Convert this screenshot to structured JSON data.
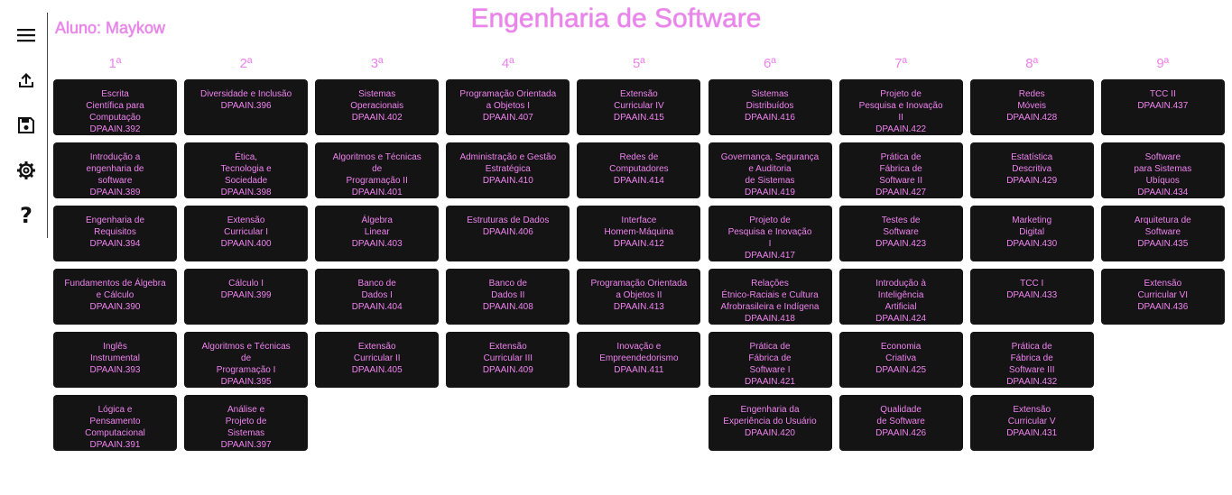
{
  "header": {
    "title": "Engenharia de Software",
    "student": "Aluno: Maykow"
  },
  "sidebar": {
    "items": [
      {
        "name": "menu-icon"
      },
      {
        "name": "upload-icon"
      },
      {
        "name": "save-icon"
      },
      {
        "name": "settings-icon"
      },
      {
        "name": "help-icon"
      }
    ]
  },
  "semesters": [
    "1ª",
    "2ª",
    "3ª",
    "4ª",
    "5ª",
    "6ª",
    "7ª",
    "8ª",
    "9ª"
  ],
  "columns": [
    [
      {
        "lines": [
          "Escrita",
          "Científica para",
          "Computação",
          "DPAAIN.392"
        ]
      },
      {
        "lines": [
          "Introdução a",
          "engenharia de",
          "software",
          "DPAAIN.389"
        ]
      },
      {
        "lines": [
          "Engenharia de",
          "Requisitos",
          "DPAAIN.394"
        ]
      },
      {
        "lines": [
          "Fundamentos de Álgebra",
          "e Cálculo",
          "DPAAIN.390"
        ]
      },
      {
        "lines": [
          "Inglês",
          "Instrumental",
          "DPAAIN.393"
        ]
      },
      {
        "lines": [
          "Lógica e",
          "Pensamento",
          "Computacional",
          "DPAAIN.391"
        ]
      }
    ],
    [
      {
        "lines": [
          "Diversidade e Inclusão",
          "DPAAIN.396"
        ]
      },
      {
        "lines": [
          "Ética,",
          "Tecnologia e",
          "Sociedade",
          "DPAAIN.398"
        ]
      },
      {
        "lines": [
          "Extensão",
          "Curricular I",
          "DPAAIN.400"
        ]
      },
      {
        "lines": [
          "Cálculo I",
          "DPAAIN.399"
        ]
      },
      {
        "lines": [
          "Algoritmos e Técnicas",
          "de",
          "Programação I",
          "DPAAIN.395"
        ]
      },
      {
        "lines": [
          "Análise e",
          "Projeto de",
          "Sistemas",
          "DPAAIN.397"
        ]
      }
    ],
    [
      {
        "lines": [
          "Sistemas",
          "Operacionais",
          "DPAAIN.402"
        ]
      },
      {
        "lines": [
          "Algoritmos e Técnicas",
          "de",
          "Programação II",
          "DPAAIN.401"
        ]
      },
      {
        "lines": [
          "Álgebra",
          "Linear",
          "DPAAIN.403"
        ]
      },
      {
        "lines": [
          "Banco de",
          "Dados I",
          "DPAAIN.404"
        ]
      },
      {
        "lines": [
          "Extensão",
          "Curricular II",
          "DPAAIN.405"
        ]
      }
    ],
    [
      {
        "lines": [
          "Programação Orientada",
          "a Objetos I",
          "DPAAIN.407"
        ]
      },
      {
        "lines": [
          "Administração e Gestão",
          "Estratégica",
          "DPAAIN.410"
        ]
      },
      {
        "lines": [
          "Estruturas de Dados",
          "DPAAIN.406"
        ]
      },
      {
        "lines": [
          "Banco de",
          "Dados II",
          "DPAAIN.408"
        ]
      },
      {
        "lines": [
          "Extensão",
          "Curricular III",
          "DPAAIN.409"
        ]
      }
    ],
    [
      {
        "lines": [
          "Extensão",
          "Curricular IV",
          "DPAAIN.415"
        ]
      },
      {
        "lines": [
          "Redes de",
          "Computadores",
          "DPAAIN.414"
        ]
      },
      {
        "lines": [
          "Interface",
          "Homem-Máquina",
          "DPAAIN.412"
        ]
      },
      {
        "lines": [
          "Programação Orientada",
          "a Objetos II",
          "DPAAIN.413"
        ]
      },
      {
        "lines": [
          "Inovação e",
          "Empreendedorismo",
          "DPAAIN.411"
        ]
      }
    ],
    [
      {
        "lines": [
          "Sistemas",
          "Distribuídos",
          "DPAAIN.416"
        ]
      },
      {
        "lines": [
          "Governança, Segurança",
          "e Auditoria",
          "de Sistemas",
          "DPAAIN.419"
        ]
      },
      {
        "lines": [
          "Projeto de",
          "Pesquisa e Inovação",
          "I",
          "DPAAIN.417"
        ]
      },
      {
        "lines": [
          "Relações",
          "Étnico-Raciais e Cultura",
          "Afrobrasileira e Indígena",
          "DPAAIN.418"
        ]
      },
      {
        "lines": [
          "Prática de",
          "Fábrica de",
          "Software I",
          "DPAAIN.421"
        ]
      },
      {
        "lines": [
          "Engenharia da",
          "Experiência do Usuário",
          "DPAAIN.420"
        ]
      }
    ],
    [
      {
        "lines": [
          "Projeto de",
          "Pesquisa e Inovação",
          "II",
          "DPAAIN.422"
        ]
      },
      {
        "lines": [
          "Prática de",
          "Fábrica de",
          "Software II",
          "DPAAIN.427"
        ]
      },
      {
        "lines": [
          "Testes de",
          "Software",
          "DPAAIN.423"
        ]
      },
      {
        "lines": [
          "Introdução à",
          "Inteligência",
          "Artificial",
          "DPAAIN.424"
        ]
      },
      {
        "lines": [
          "Economia",
          "Criativa",
          "DPAAIN.425"
        ]
      },
      {
        "lines": [
          "Qualidade",
          "de Software",
          "DPAAIN.426"
        ]
      }
    ],
    [
      {
        "lines": [
          "Redes",
          "Móveis",
          "DPAAIN.428"
        ]
      },
      {
        "lines": [
          "Estatística",
          "Descritiva",
          "DPAAIN.429"
        ]
      },
      {
        "lines": [
          "Marketing",
          "Digital",
          "DPAAIN.430"
        ]
      },
      {
        "lines": [
          "TCC I",
          "DPAAIN.433"
        ]
      },
      {
        "lines": [
          "Prática de",
          "Fábrica de",
          "Software III",
          "DPAAIN.432"
        ]
      },
      {
        "lines": [
          "Extensão",
          "Curricular V",
          "DPAAIN.431"
        ]
      }
    ],
    [
      {
        "lines": [
          "TCC II",
          "DPAAIN.437"
        ]
      },
      {
        "lines": [
          "Software",
          "para Sistemas",
          "Ubíquos",
          "DPAAIN.434"
        ]
      },
      {
        "lines": [
          "Arquitetura de",
          "Software",
          "DPAAIN.435"
        ]
      },
      {
        "lines": [
          "Extensão",
          "Curricular VI",
          "DPAAIN.436"
        ]
      }
    ]
  ]
}
